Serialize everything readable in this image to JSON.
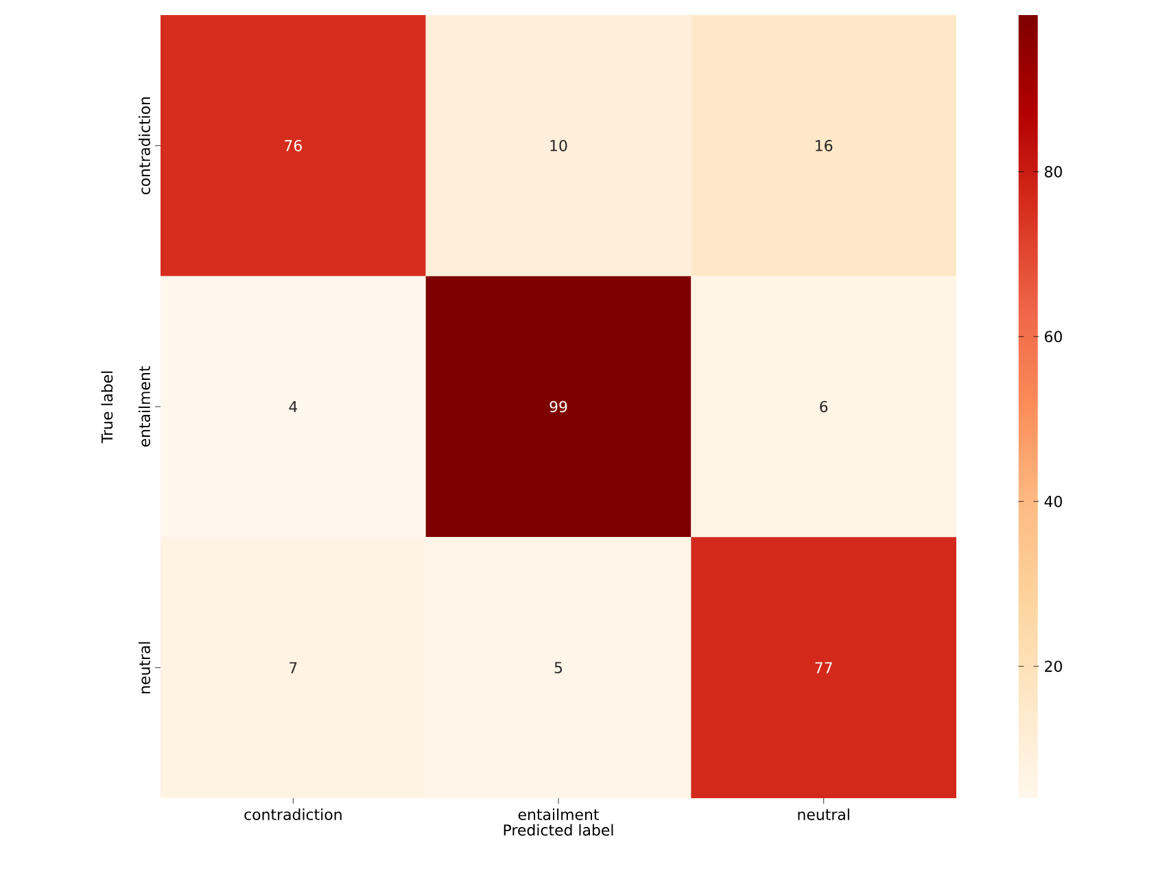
{
  "chart_data": {
    "type": "heatmap",
    "xlabel": "Predicted label",
    "ylabel": "True label",
    "categories": [
      "contradiction",
      "entailment",
      "neutral"
    ],
    "y_categories": [
      "contradiction",
      "entailment",
      "neutral"
    ],
    "cells": [
      [
        76,
        10,
        16
      ],
      [
        4,
        99,
        6
      ],
      [
        7,
        5,
        77
      ]
    ],
    "data_labels": true,
    "clim": [
      4,
      99
    ],
    "cticks": [
      20,
      40,
      60,
      80
    ]
  }
}
